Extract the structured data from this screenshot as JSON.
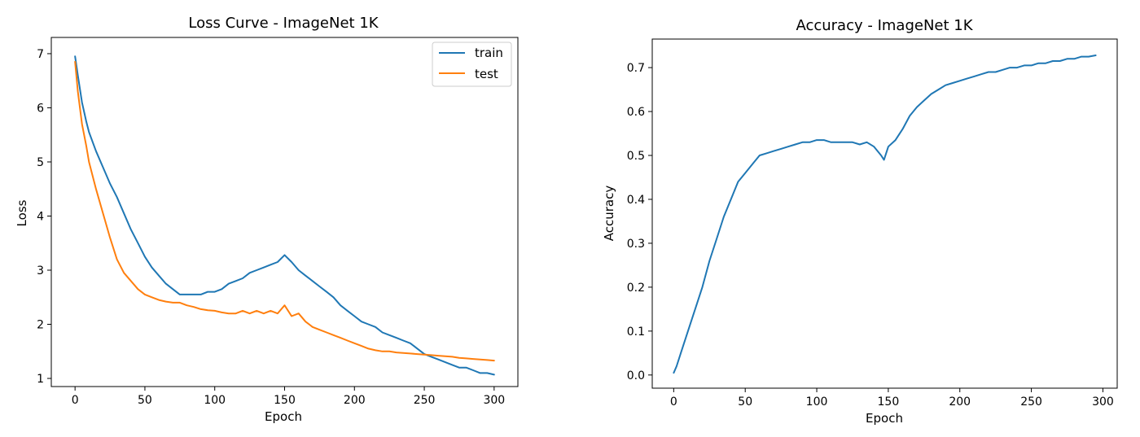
{
  "chart_data": [
    {
      "type": "line",
      "title": "Loss Curve - ImageNet 1K",
      "xlabel": "Epoch",
      "ylabel": "Loss",
      "xlim": [
        -17,
        317
      ],
      "ylim": [
        0.85,
        7.3
      ],
      "xticks": [
        0,
        50,
        100,
        150,
        200,
        250,
        300
      ],
      "yticks": [
        1,
        2,
        3,
        4,
        5,
        6,
        7
      ],
      "legend": "top-right",
      "series": [
        {
          "name": "train",
          "color": "#1f77b4",
          "x": [
            0,
            2,
            5,
            8,
            10,
            15,
            20,
            25,
            30,
            35,
            40,
            45,
            50,
            55,
            60,
            65,
            70,
            75,
            80,
            85,
            90,
            95,
            100,
            105,
            110,
            115,
            120,
            125,
            130,
            135,
            140,
            145,
            150,
            155,
            160,
            165,
            170,
            175,
            180,
            185,
            190,
            195,
            200,
            205,
            210,
            215,
            220,
            225,
            230,
            235,
            240,
            245,
            250,
            255,
            260,
            265,
            270,
            275,
            280,
            285,
            290,
            295,
            300
          ],
          "values": [
            6.95,
            6.6,
            6.1,
            5.75,
            5.55,
            5.2,
            4.9,
            4.6,
            4.35,
            4.05,
            3.75,
            3.5,
            3.25,
            3.05,
            2.9,
            2.75,
            2.65,
            2.55,
            2.55,
            2.55,
            2.55,
            2.6,
            2.6,
            2.65,
            2.75,
            2.8,
            2.85,
            2.95,
            3.0,
            3.05,
            3.1,
            3.15,
            3.28,
            3.15,
            3.0,
            2.9,
            2.8,
            2.7,
            2.6,
            2.5,
            2.35,
            2.25,
            2.15,
            2.05,
            2.0,
            1.95,
            1.85,
            1.8,
            1.75,
            1.7,
            1.65,
            1.55,
            1.45,
            1.4,
            1.35,
            1.3,
            1.25,
            1.2,
            1.2,
            1.15,
            1.1,
            1.1,
            1.07
          ]
        },
        {
          "name": "test",
          "color": "#ff7f0e",
          "x": [
            0,
            2,
            5,
            8,
            10,
            15,
            20,
            25,
            30,
            35,
            40,
            45,
            50,
            55,
            60,
            65,
            70,
            75,
            80,
            85,
            90,
            95,
            100,
            105,
            110,
            115,
            120,
            125,
            130,
            135,
            140,
            145,
            150,
            155,
            160,
            165,
            170,
            175,
            180,
            185,
            190,
            195,
            200,
            205,
            210,
            215,
            220,
            225,
            230,
            235,
            240,
            245,
            250,
            255,
            260,
            265,
            270,
            275,
            280,
            285,
            290,
            295,
            300
          ],
          "values": [
            6.85,
            6.3,
            5.7,
            5.3,
            5.0,
            4.5,
            4.05,
            3.6,
            3.2,
            2.95,
            2.8,
            2.65,
            2.55,
            2.5,
            2.45,
            2.42,
            2.4,
            2.4,
            2.35,
            2.32,
            2.28,
            2.26,
            2.25,
            2.22,
            2.2,
            2.2,
            2.25,
            2.2,
            2.25,
            2.2,
            2.25,
            2.2,
            2.35,
            2.15,
            2.2,
            2.05,
            1.95,
            1.9,
            1.85,
            1.8,
            1.75,
            1.7,
            1.65,
            1.6,
            1.55,
            1.52,
            1.5,
            1.5,
            1.48,
            1.47,
            1.46,
            1.45,
            1.44,
            1.43,
            1.42,
            1.41,
            1.4,
            1.38,
            1.37,
            1.36,
            1.35,
            1.34,
            1.33
          ]
        }
      ]
    },
    {
      "type": "line",
      "title": "Accuracy - ImageNet 1K",
      "xlabel": "Epoch",
      "ylabel": "Accuracy",
      "xlim": [
        -15,
        310
      ],
      "ylim": [
        -0.03,
        0.765
      ],
      "xticks": [
        0,
        50,
        100,
        150,
        200,
        250,
        300
      ],
      "yticks": [
        0.0,
        0.1,
        0.2,
        0.3,
        0.4,
        0.5,
        0.6,
        0.7
      ],
      "series": [
        {
          "name": "accuracy",
          "color": "#1f77b4",
          "x": [
            0,
            2,
            5,
            10,
            15,
            20,
            25,
            30,
            35,
            40,
            45,
            50,
            55,
            60,
            65,
            70,
            75,
            80,
            85,
            90,
            95,
            100,
            105,
            110,
            115,
            120,
            125,
            130,
            135,
            140,
            145,
            147,
            150,
            155,
            160,
            165,
            170,
            175,
            180,
            185,
            190,
            195,
            200,
            205,
            210,
            215,
            220,
            225,
            230,
            235,
            240,
            245,
            250,
            255,
            260,
            265,
            270,
            275,
            280,
            285,
            290,
            295
          ],
          "values": [
            0.005,
            0.02,
            0.05,
            0.1,
            0.15,
            0.2,
            0.26,
            0.31,
            0.36,
            0.4,
            0.44,
            0.46,
            0.48,
            0.5,
            0.505,
            0.51,
            0.515,
            0.52,
            0.525,
            0.53,
            0.53,
            0.535,
            0.535,
            0.53,
            0.53,
            0.53,
            0.53,
            0.525,
            0.53,
            0.52,
            0.5,
            0.49,
            0.52,
            0.535,
            0.56,
            0.59,
            0.61,
            0.625,
            0.64,
            0.65,
            0.66,
            0.665,
            0.67,
            0.675,
            0.68,
            0.685,
            0.69,
            0.69,
            0.695,
            0.7,
            0.7,
            0.705,
            0.705,
            0.71,
            0.71,
            0.715,
            0.715,
            0.72,
            0.72,
            0.725,
            0.725,
            0.728
          ]
        }
      ]
    }
  ]
}
